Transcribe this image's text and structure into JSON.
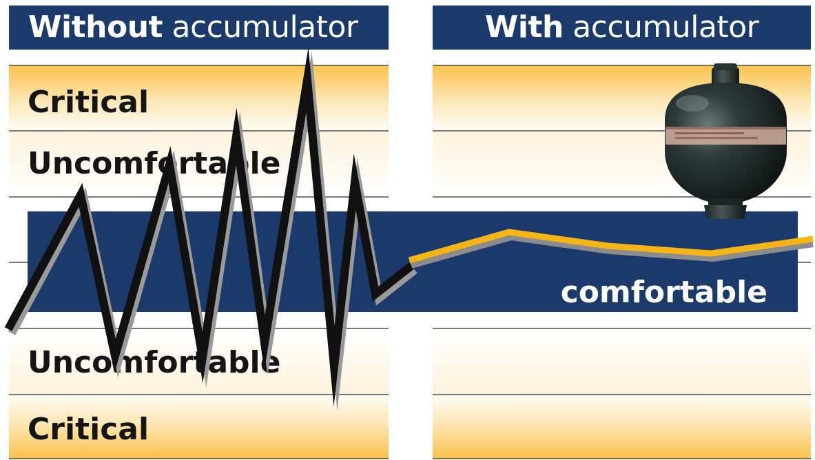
{
  "headers": {
    "left": {
      "bold": "Without",
      "rest": " accumulator"
    },
    "right": {
      "bold": "With",
      "rest": " accumulator"
    }
  },
  "zones": {
    "top_critical": "Critical",
    "top_uncomfortable": "Uncomfortable",
    "comfortable": "comfortable",
    "bottom_uncomfortable": "Uncomfortable",
    "bottom_critical": "Critical"
  },
  "colors": {
    "header_bg": "#1a3a6b",
    "comfort_band": "#1a3a6b",
    "critical_gradient": "#fbc24a",
    "line_without": "#111111",
    "line_with": "#f7b515",
    "shadow": "#9a9a9a"
  },
  "icons": {
    "accumulator": "hydraulic-accumulator-icon"
  }
}
